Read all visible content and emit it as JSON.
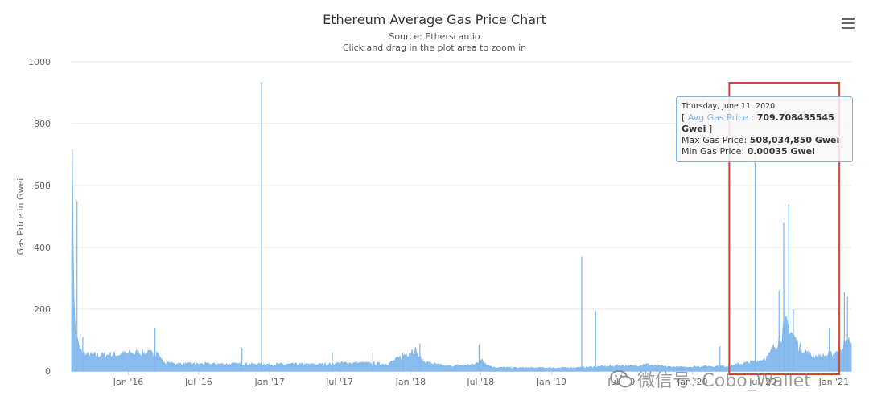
{
  "chart_data": {
    "type": "area",
    "title": "Ethereum Average Gas Price Chart",
    "subtitle": "Source: Etherscan.io",
    "subtitle2": "Click and drag in the plot area to zoom in",
    "ylabel": "Gas Price in Gwei",
    "ylim": [
      0,
      1000
    ],
    "yticks": [
      "0",
      "200",
      "400",
      "600",
      "800",
      "1000"
    ],
    "xlim": [
      "2015-08-07",
      "2021-02-15"
    ],
    "xticks": [
      "Jan '16",
      "Jul '16",
      "Jan '17",
      "Jul '17",
      "Jan '18",
      "Jul '18",
      "Jan '19",
      "Jul '19",
      "Jan '20",
      "Jul '20",
      "Jan '21"
    ],
    "series": [
      {
        "name": "Avg Gas Price",
        "color": "#7cb5ec",
        "points": [
          [
            "2015-08-07",
            480
          ],
          [
            "2015-08-09",
            600
          ],
          [
            "2015-08-12",
            380
          ],
          [
            "2015-08-15",
            150
          ],
          [
            "2015-08-20",
            100
          ],
          [
            "2015-09-01",
            60
          ],
          [
            "2015-09-15",
            50
          ],
          [
            "2015-10-15",
            50
          ],
          [
            "2015-12-01",
            52
          ],
          [
            "2016-01-01",
            55
          ],
          [
            "2016-02-01",
            58
          ],
          [
            "2016-03-01",
            55
          ],
          [
            "2016-03-15",
            60
          ],
          [
            "2016-04-01",
            25
          ],
          [
            "2016-06-01",
            22
          ],
          [
            "2016-09-01",
            22
          ],
          [
            "2016-11-01",
            22
          ],
          [
            "2016-12-01",
            21
          ],
          [
            "2017-03-01",
            21
          ],
          [
            "2017-05-01",
            21
          ],
          [
            "2017-06-15",
            22
          ],
          [
            "2017-07-01",
            25
          ],
          [
            "2017-09-01",
            25
          ],
          [
            "2017-11-01",
            22
          ],
          [
            "2017-12-01",
            40
          ],
          [
            "2018-01-10",
            70
          ],
          [
            "2018-02-01",
            30
          ],
          [
            "2018-04-01",
            15
          ],
          [
            "2018-06-15",
            20
          ],
          [
            "2018-07-01",
            35
          ],
          [
            "2018-08-01",
            12
          ],
          [
            "2018-10-01",
            10
          ],
          [
            "2018-12-01",
            10
          ],
          [
            "2019-02-01",
            10
          ],
          [
            "2019-04-01",
            12
          ],
          [
            "2019-06-01",
            15
          ],
          [
            "2019-07-01",
            18
          ],
          [
            "2019-08-01",
            15
          ],
          [
            "2019-09-01",
            22
          ],
          [
            "2019-10-01",
            15
          ],
          [
            "2019-12-01",
            12
          ],
          [
            "2020-02-01",
            15
          ],
          [
            "2020-04-01",
            15
          ],
          [
            "2020-05-15",
            25
          ],
          [
            "2020-06-15",
            30
          ],
          [
            "2020-07-15",
            45
          ],
          [
            "2020-08-15",
            110
          ],
          [
            "2020-09-01",
            150
          ],
          [
            "2020-09-15",
            120
          ],
          [
            "2020-10-01",
            80
          ],
          [
            "2020-11-01",
            50
          ],
          [
            "2020-12-01",
            45
          ],
          [
            "2021-01-01",
            55
          ],
          [
            "2021-01-20",
            80
          ],
          [
            "2021-02-15",
            95
          ]
        ],
        "spikes": [
          [
            "2015-08-21",
            550
          ],
          [
            "2015-09-05",
            110
          ],
          [
            "2016-03-10",
            140
          ],
          [
            "2016-10-21",
            75
          ],
          [
            "2016-12-11",
            935
          ],
          [
            "2017-06-12",
            60
          ],
          [
            "2017-09-25",
            60
          ],
          [
            "2017-12-12",
            60
          ],
          [
            "2018-01-25",
            90
          ],
          [
            "2018-06-27",
            85
          ],
          [
            "2019-03-20",
            370
          ],
          [
            "2019-04-25",
            195
          ],
          [
            "2020-03-12",
            80
          ],
          [
            "2020-06-11",
            710
          ],
          [
            "2020-08-12",
            260
          ],
          [
            "2020-08-24",
            480
          ],
          [
            "2020-08-27",
            390
          ],
          [
            "2020-09-06",
            540
          ],
          [
            "2020-09-18",
            200
          ],
          [
            "2020-12-20",
            140
          ],
          [
            "2021-01-28",
            255
          ],
          [
            "2021-02-05",
            240
          ]
        ]
      }
    ],
    "tooltip": {
      "date": "Thursday, June 11, 2020",
      "avg_label": "Avg Gas Price",
      "avg_value": "709.708435545 Gwei",
      "max_label": "Max Gas Price:",
      "max_value": "508,034,850 Gwei",
      "min_label": "Min Gas Price:",
      "min_value": "0.00035 Gwei",
      "date_iso": "2020-06-11",
      "value": 709.7
    },
    "highlight": {
      "from": "2020-04-05",
      "to": "2021-01-15",
      "color": "#d9422b"
    }
  },
  "watermark": {
    "text": "微信号: Cobo_Wallet",
    "color": "#888888"
  }
}
